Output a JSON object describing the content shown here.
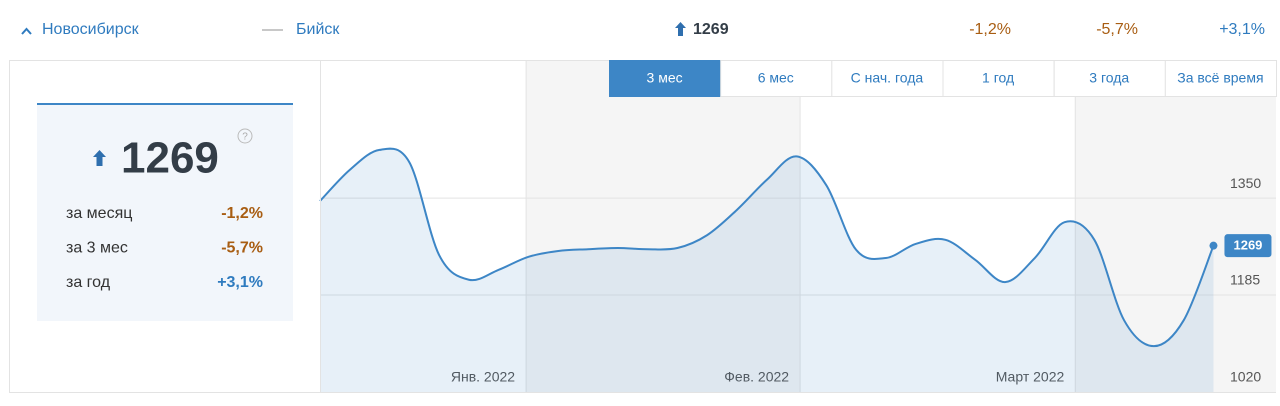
{
  "header": {
    "city": "Новосибирск",
    "compare": "Бийск",
    "value": "1269",
    "changes": [
      "-1,2%",
      "-5,7%",
      "+3,1%"
    ]
  },
  "summary": {
    "value": "1269",
    "help": "?",
    "rows": [
      {
        "label": "за месяц",
        "change": "-1,2%"
      },
      {
        "label": "за 3 мес",
        "change": "-5,7%"
      },
      {
        "label": "за год",
        "change": "+3,1%"
      }
    ]
  },
  "tabs": [
    "3 мес",
    "6 мес",
    "С нач. года",
    "1 год",
    "3 года",
    "За всё время"
  ],
  "active_tab": 0,
  "chart_data": {
    "type": "line",
    "color": "#3d86c6",
    "area": true,
    "x": [
      0,
      1,
      2,
      3,
      4,
      5,
      6,
      7,
      8,
      9,
      10,
      11,
      12,
      13,
      14,
      15,
      16,
      17,
      18,
      19,
      20,
      21,
      22,
      23,
      24,
      25,
      26,
      27,
      28,
      29,
      30
    ],
    "values": [
      1345,
      1398,
      1432,
      1411,
      1253,
      1211,
      1228,
      1250,
      1260,
      1263,
      1265,
      1263,
      1265,
      1287,
      1330,
      1381,
      1421,
      1372,
      1262,
      1248,
      1272,
      1279,
      1245,
      1207,
      1248,
      1309,
      1279,
      1142,
      1098,
      1142,
      1269
    ],
    "xlim": [
      0,
      32.1
    ],
    "xticks": [
      {
        "value": 6.92,
        "label": "Янв. 2022"
      },
      {
        "value": 16.12,
        "label": "Фев. 2022"
      },
      {
        "value": 25.36,
        "label": "Март 2022"
      }
    ],
    "ylim": [
      1020,
      1585
    ],
    "yticks": [
      1020,
      1185,
      1350
    ],
    "grid": true
  }
}
